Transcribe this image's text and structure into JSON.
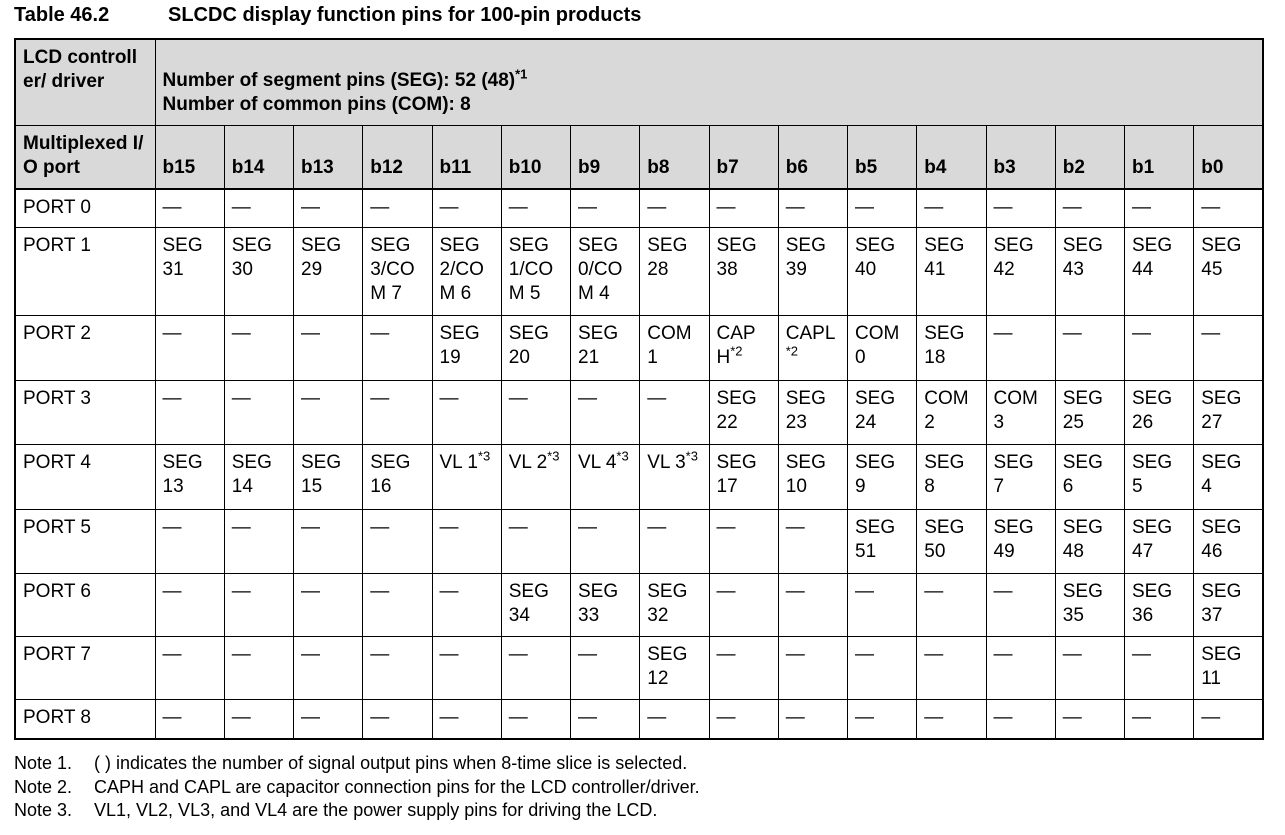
{
  "title": {
    "number": "Table 46.2",
    "text": "SLCDC display function pins for 100-pin products"
  },
  "header": {
    "lcd_label": "LCD controller/ driver",
    "seg_line": "Number of segment pins (SEG): 52 (48)",
    "seg_note": "*1",
    "com_line": "Number of common pins (COM): 8",
    "mux_label": "Multiplexed I/O port"
  },
  "bits": [
    "b15",
    "b14",
    "b13",
    "b12",
    "b11",
    "b10",
    "b9",
    "b8",
    "b7",
    "b6",
    "b5",
    "b4",
    "b3",
    "b2",
    "b1",
    "b0"
  ],
  "rows": [
    {
      "port": "PORT 0",
      "cells": [
        "—",
        "—",
        "—",
        "—",
        "—",
        "—",
        "—",
        "—",
        "—",
        "—",
        "—",
        "—",
        "—",
        "—",
        "—",
        "—"
      ]
    },
    {
      "port": "PORT 1",
      "cells": [
        "SEG 31",
        "SEG 30",
        "SEG 29",
        "SEG 3/CO M 7",
        "SEG 2/CO M 6",
        "SEG 1/CO M 5",
        "SEG 0/CO M 4",
        "SEG 28",
        "SEG 38",
        "SEG 39",
        "SEG 40",
        "SEG 41",
        "SEG 42",
        "SEG 43",
        "SEG 44",
        "SEG 45"
      ]
    },
    {
      "port": "PORT 2",
      "cells": [
        "—",
        "—",
        "—",
        "—",
        "SEG 19",
        "SEG 20",
        "SEG 21",
        "COM 1",
        {
          "t": "CAP H",
          "s": "*2"
        },
        {
          "t": "CAPL ",
          "s": "*2"
        },
        "COM 0",
        "SEG 18",
        "—",
        "—",
        "—",
        "—"
      ]
    },
    {
      "port": "PORT 3",
      "cells": [
        "—",
        "—",
        "—",
        "—",
        "—",
        "—",
        "—",
        "—",
        "SEG 22",
        "SEG 23",
        "SEG 24",
        "COM 2",
        "COM 3",
        "SEG 25",
        "SEG 26",
        "SEG 27"
      ]
    },
    {
      "port": "PORT 4",
      "cells": [
        "SEG 13",
        "SEG 14",
        "SEG 15",
        "SEG 16",
        {
          "t": "VL 1",
          "s": "*3"
        },
        {
          "t": "VL 2",
          "s": "*3"
        },
        {
          "t": "VL 4",
          "s": "*3"
        },
        {
          "t": "VL 3",
          "s": "*3"
        },
        "SEG 17",
        "SEG 10",
        "SEG 9",
        "SEG 8",
        "SEG 7",
        "SEG 6",
        "SEG 5",
        "SEG 4"
      ]
    },
    {
      "port": "PORT 5",
      "cells": [
        "—",
        "—",
        "—",
        "—",
        "—",
        "—",
        "—",
        "—",
        "—",
        "—",
        "SEG 51",
        "SEG 50",
        "SEG 49",
        "SEG 48",
        "SEG 47",
        "SEG 46"
      ]
    },
    {
      "port": "PORT 6",
      "cells": [
        "—",
        "—",
        "—",
        "—",
        "—",
        "SEG 34",
        "SEG 33",
        "SEG 32",
        "—",
        "—",
        "—",
        "—",
        "—",
        "SEG 35",
        "SEG 36",
        "SEG 37"
      ]
    },
    {
      "port": "PORT 7",
      "cells": [
        "—",
        "—",
        "—",
        "—",
        "—",
        "—",
        "—",
        "SEG 12",
        "—",
        "—",
        "—",
        "—",
        "—",
        "—",
        "—",
        "SEG 11"
      ]
    },
    {
      "port": "PORT 8",
      "cells": [
        "—",
        "—",
        "—",
        "—",
        "—",
        "—",
        "—",
        "—",
        "—",
        "—",
        "—",
        "—",
        "—",
        "—",
        "—",
        "—"
      ]
    }
  ],
  "notes": [
    {
      "label": "Note 1.",
      "text": "( ) indicates the number of signal output pins when 8-time slice is selected."
    },
    {
      "label": "Note 2.",
      "text": "CAPH and CAPL are capacitor connection pins for the LCD controller/driver."
    },
    {
      "label": "Note 3.",
      "text": "VL1, VL2, VL3, and VL4 are the power supply pins for driving the LCD."
    }
  ]
}
